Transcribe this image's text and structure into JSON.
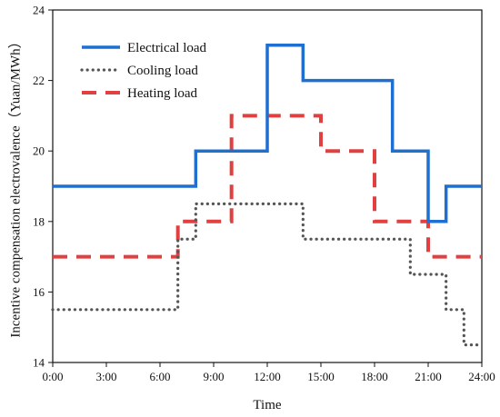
{
  "chart_data": {
    "type": "line",
    "step": true,
    "xlabel": "Time",
    "ylabel": "Incentive compensation electrovalence（Yuan/MWh）",
    "xlim": [
      0,
      24
    ],
    "ylim": [
      14,
      24
    ],
    "xticks": [
      0,
      3,
      6,
      9,
      12,
      15,
      18,
      21,
      24
    ],
    "xtick_labels": [
      "0:00",
      "3:00",
      "6:00",
      "9:00",
      "12:00",
      "15:00",
      "18:00",
      "21:00",
      "24:00"
    ],
    "yticks": [
      14,
      16,
      18,
      20,
      22,
      24
    ],
    "ytick_labels": [
      "14",
      "16",
      "18",
      "20",
      "22",
      "24"
    ],
    "grid": false,
    "legend_position": "top-left",
    "series": [
      {
        "name": "Electrical load",
        "color": "#1f6fd1",
        "dash": "solid",
        "points": [
          [
            0,
            19
          ],
          [
            8,
            19
          ],
          [
            8,
            20
          ],
          [
            12,
            20
          ],
          [
            12,
            23
          ],
          [
            14,
            23
          ],
          [
            14,
            22
          ],
          [
            19,
            22
          ],
          [
            19,
            20
          ],
          [
            21,
            20
          ],
          [
            21,
            18
          ],
          [
            22,
            18
          ],
          [
            22,
            19
          ],
          [
            24,
            19
          ]
        ]
      },
      {
        "name": "Cooling load",
        "color": "#555555",
        "dash": "dotted",
        "points": [
          [
            0,
            15.5
          ],
          [
            7,
            15.5
          ],
          [
            7,
            17.5
          ],
          [
            8,
            17.5
          ],
          [
            8,
            18.5
          ],
          [
            14,
            18.5
          ],
          [
            14,
            17.5
          ],
          [
            20,
            17.5
          ],
          [
            20,
            16.5
          ],
          [
            22,
            16.5
          ],
          [
            22,
            15.5
          ],
          [
            23,
            15.5
          ],
          [
            23,
            14.5
          ],
          [
            24,
            14.5
          ]
        ]
      },
      {
        "name": "Heating load",
        "color": "#e04040",
        "dash": "dashed",
        "points": [
          [
            0,
            17
          ],
          [
            7,
            17
          ],
          [
            7,
            18
          ],
          [
            10,
            18
          ],
          [
            10,
            21
          ],
          [
            15,
            21
          ],
          [
            15,
            20
          ],
          [
            18,
            20
          ],
          [
            18,
            18
          ],
          [
            21,
            18
          ],
          [
            21,
            17
          ],
          [
            24,
            17
          ]
        ]
      }
    ]
  }
}
